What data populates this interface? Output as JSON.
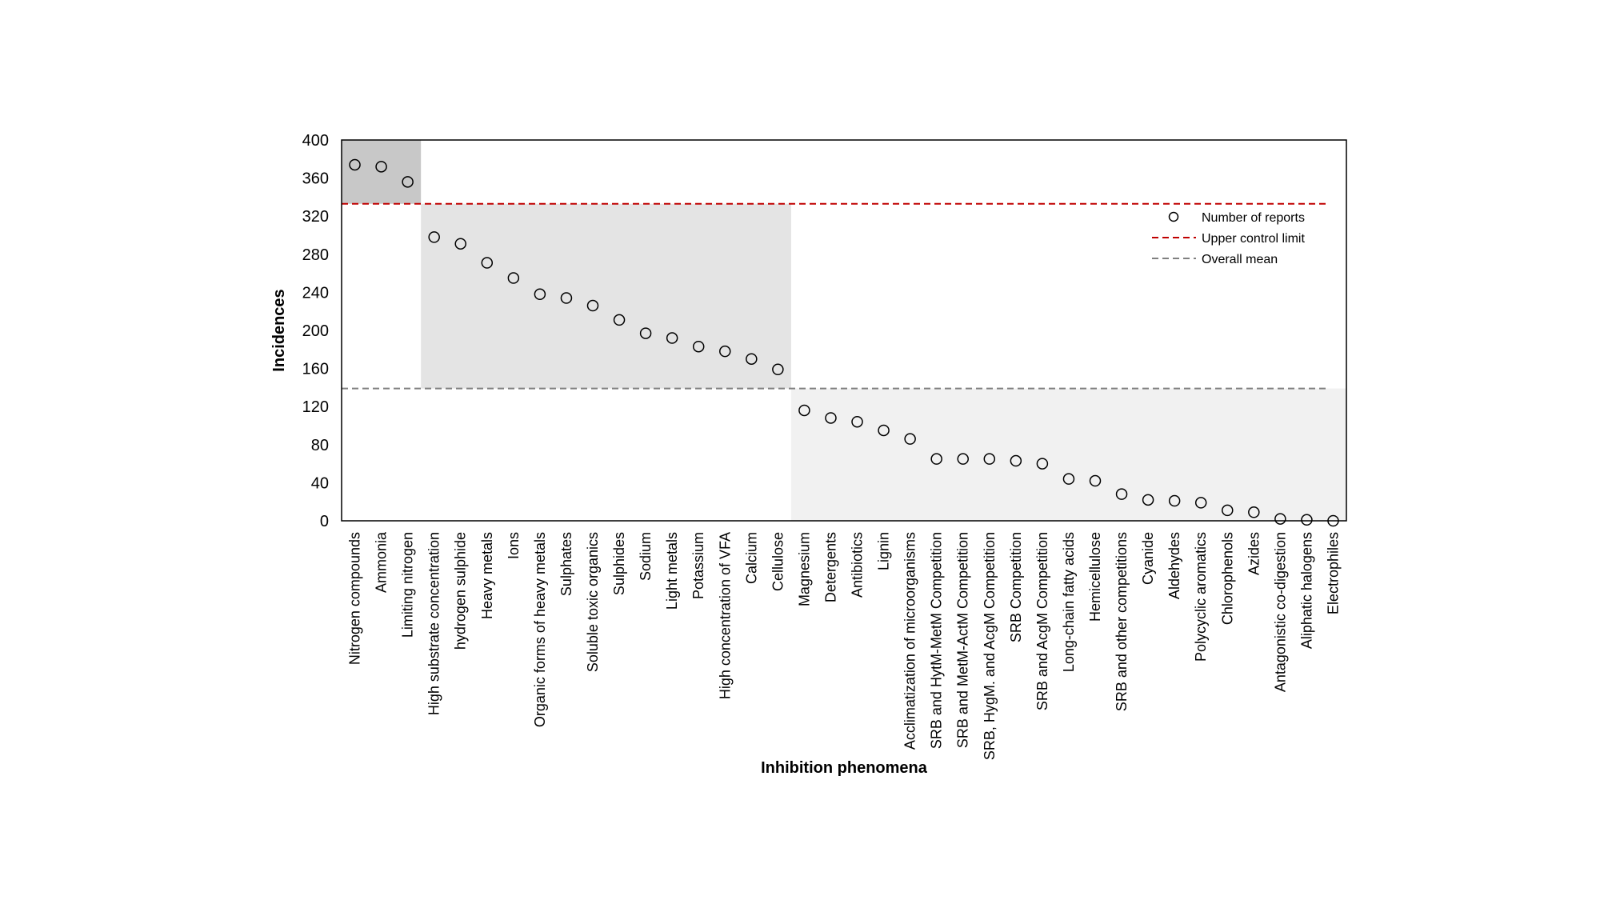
{
  "chart_data": {
    "type": "scatter",
    "title": "",
    "xlabel": "Inhibition phenomena",
    "ylabel": "Incidences",
    "ylim": [
      0,
      400
    ],
    "yticks": [
      0,
      40,
      80,
      120,
      160,
      200,
      240,
      280,
      320,
      360,
      400
    ],
    "grid": false,
    "legend_position": "top-right",
    "categories": [
      "Nitrogen compounds",
      "Ammonia",
      "Limiting nitrogen",
      "High substrate concentration",
      "hydrogen sulphide",
      "Heavy metals",
      "Ions",
      "Organic forms of heavy metals",
      "Sulphates",
      "Soluble toxic organics",
      "Sulphides",
      "Sodium",
      "Light metals",
      "Potassium",
      "High concentration of VFA",
      "Calcium",
      "Cellulose",
      "Magnesium",
      "Detergents",
      "Antibiotics",
      "Lignin",
      "Acclimatization of microorganisms",
      "SRB and HytM-MetM Competition",
      "SRB and MetM-ActM Competition",
      "SRB, HygM. and AcgM Competition",
      "SRB Competition",
      "SRB and AcgM Competition",
      "Long-chain fatty acids",
      "Hemicellulose",
      "SRB and other competitions",
      "Cyanide",
      "Aldehydes",
      "Polycyclic aromatics",
      "Chlorophenols",
      "Azides",
      "Antagonistic co-digestion",
      "Aliphatic halogens",
      "Electrophiles"
    ],
    "series": [
      {
        "name": "Number of reports",
        "values": [
          374,
          372,
          356,
          298,
          291,
          271,
          255,
          238,
          234,
          226,
          211,
          197,
          192,
          183,
          178,
          170,
          159,
          116,
          108,
          104,
          95,
          86,
          65,
          65,
          65,
          63,
          60,
          44,
          42,
          28,
          22,
          21,
          19,
          11,
          9,
          2,
          1,
          0
        ]
      },
      {
        "name": "Upper control limit",
        "value": 333,
        "color": "#c00000",
        "style": "dashed"
      },
      {
        "name": "Overall mean",
        "value": 139,
        "color": "#808080",
        "style": "dashed"
      }
    ],
    "shaded_regions": [
      {
        "from_category": 0,
        "to_category": 2,
        "y_from": 333,
        "y_to": 400,
        "color": "#c8c8c8"
      },
      {
        "from_category": 3,
        "to_category": 16,
        "y_from": 139,
        "y_to": 333,
        "color": "#e4e4e4"
      },
      {
        "from_category": 17,
        "to_category": 37,
        "y_from": 0,
        "y_to": 139,
        "color": "#f1f1f1"
      }
    ]
  }
}
